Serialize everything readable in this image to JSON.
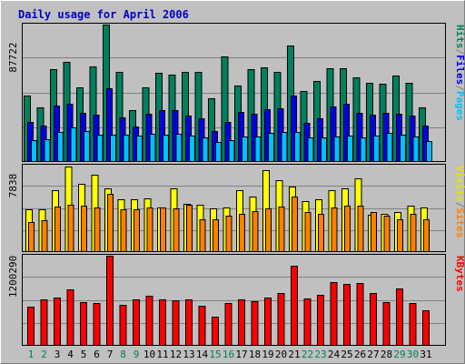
{
  "chart_data": {
    "type": "bar",
    "title": "Daily usage for April 2006",
    "days": [
      1,
      2,
      3,
      4,
      5,
      6,
      7,
      8,
      9,
      10,
      11,
      12,
      13,
      14,
      15,
      16,
      17,
      18,
      19,
      20,
      21,
      22,
      23,
      24,
      25,
      26,
      27,
      28,
      29,
      30,
      31
    ],
    "weekend_days": [
      1,
      2,
      8,
      9,
      15,
      16,
      22,
      23,
      29,
      30
    ],
    "panels": [
      {
        "id": "hits-files-pages",
        "max_label": "87722",
        "axis_max": 87722,
        "right_labels": [
          {
            "text": "Hits",
            "color": "#00805c"
          },
          {
            "text": "/",
            "color": "#808080"
          },
          {
            "text": "Files",
            "color": "#0000e6"
          },
          {
            "text": "/",
            "color": "#808080"
          },
          {
            "text": "Pages",
            "color": "#00c0ff"
          }
        ],
        "series": [
          {
            "name": "Hits",
            "color": "#00805c",
            "values": [
              42600,
              34800,
              59200,
              63900,
              47600,
              61100,
              87700,
              57800,
              33300,
              47600,
              57200,
              55900,
              57800,
              57800,
              40500,
              67300,
              48900,
              59200,
              60400,
              57800,
              74500,
              45100,
              51500,
              59900,
              59900,
              53800,
              50800,
              50200,
              55100,
              50800,
              34800
            ]
          },
          {
            "name": "Files",
            "color": "#0000e6",
            "values": [
              25700,
              23100,
              36100,
              37400,
              31600,
              30000,
              47300,
              28400,
              22800,
              30900,
              33000,
              33000,
              29400,
              27800,
              20000,
              25700,
              32200,
              30900,
              33600,
              34200,
              42200,
              25100,
              27600,
              35700,
              37000,
              31300,
              30300,
              31600,
              30900,
              29600,
              23100
            ]
          },
          {
            "name": "Pages",
            "color": "#00c0ff",
            "values": [
              14200,
              14800,
              19300,
              21900,
              19900,
              17300,
              17300,
              17300,
              16700,
              17900,
              17300,
              17900,
              16700,
              15400,
              12800,
              13700,
              16100,
              16400,
              18600,
              19300,
              19300,
              15400,
              15400,
              16100,
              16700,
              15400,
              16700,
              18600,
              17300,
              16100,
              13400
            ]
          }
        ]
      },
      {
        "id": "visits-sites",
        "max_label": "7838",
        "axis_max": 7838,
        "right_labels": [
          {
            "text": "Visits",
            "color": "#e6e600"
          },
          {
            "text": "/",
            "color": "#808080"
          },
          {
            "text": "Sites",
            "color": "#ff8000"
          }
        ],
        "series": [
          {
            "name": "Visits",
            "color": "#ffff00",
            "values": [
              3850,
              3850,
              5650,
              7750,
              6150,
              7050,
              5800,
              4800,
              4800,
              4880,
              4050,
              5800,
              4400,
              4300,
              3950,
              4070,
              5650,
              5070,
              7450,
              6500,
              5950,
              4620,
              4800,
              5650,
              5760,
              6700,
              3420,
              3490,
              3650,
              4170,
              4080
            ]
          },
          {
            "name": "Sites",
            "color": "#ff8000",
            "values": [
              2690,
              2860,
              4140,
              4320,
              4230,
              4050,
              5310,
              3850,
              3850,
              4050,
              4070,
              3940,
              4320,
              2970,
              2990,
              3310,
              3440,
              3710,
              3940,
              4140,
              5000,
              3600,
              3490,
              4070,
              4230,
              4230,
              3660,
              3320,
              2990,
              3470,
              3000
            ]
          }
        ]
      },
      {
        "id": "kbytes",
        "max_label": "1200290",
        "axis_max": 1200290,
        "right_labels": [
          {
            "text": "KBytes",
            "color": "#ff0000"
          }
        ],
        "series": [
          {
            "name": "KBytes",
            "color": "#ff0000",
            "values": [
              524000,
              623000,
              640000,
              757000,
              582000,
              565000,
              1200000,
              550000,
              620000,
              672000,
              620000,
              608000,
              620000,
              535000,
              390000,
              565000,
              618000,
              593000,
              643000,
              705000,
              1072000,
              632000,
              675000,
              846000,
              823000,
              838000,
              700000,
              576000,
              762000,
              574000,
              467000
            ]
          }
        ]
      }
    ]
  }
}
